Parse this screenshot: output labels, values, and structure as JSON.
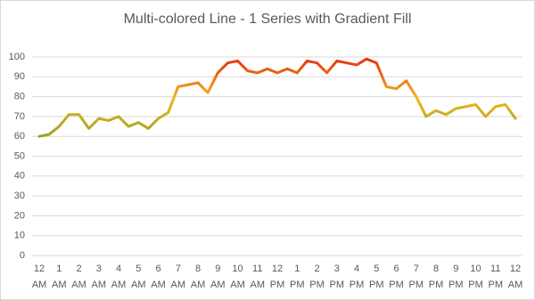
{
  "chart_data": {
    "type": "line",
    "title": "Multi-colored Line - 1 Series with Gradient Fill",
    "categories": [
      "12 AM",
      null,
      "1 AM",
      null,
      "2 AM",
      null,
      "3 AM",
      null,
      "4 AM",
      null,
      "5 AM",
      null,
      "6 AM",
      null,
      "7 AM",
      null,
      "8 AM",
      null,
      "9 AM",
      null,
      "10 AM",
      null,
      "11 AM",
      null,
      "12 PM",
      null,
      "1 PM",
      null,
      "2 PM",
      null,
      "3 PM",
      null,
      "4 PM",
      null,
      "5 PM",
      null,
      "6 PM",
      null,
      "7 PM",
      null,
      "8 PM",
      null,
      "9 PM",
      null,
      "10 PM",
      null,
      "11 PM",
      null,
      "12 AM"
    ],
    "values": [
      60,
      61,
      65,
      71,
      71,
      64,
      69,
      68,
      70,
      65,
      67,
      64,
      69,
      72,
      85,
      86,
      87,
      82,
      92,
      97,
      98,
      93,
      92,
      94,
      92,
      94,
      92,
      98,
      97,
      92,
      98,
      97,
      96,
      99,
      97,
      85,
      84,
      88,
      80,
      70,
      73,
      71,
      74,
      75,
      76,
      70,
      75,
      76,
      69
    ],
    "gradient_colors": [
      "#9aa623",
      "#f3b51b",
      "#e6340f"
    ],
    "ylim": [
      0,
      100
    ],
    "yticks": [
      0,
      10,
      20,
      30,
      40,
      50,
      60,
      70,
      80,
      90,
      100
    ],
    "grid": true
  }
}
